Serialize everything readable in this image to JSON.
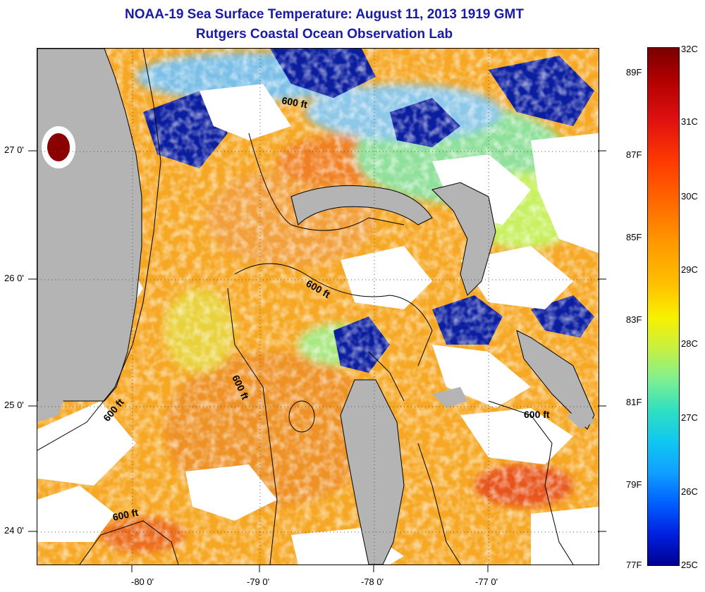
{
  "title": {
    "line1": "NOAA-19 Sea Surface Temperature:  August 11, 2013 1919 GMT",
    "line2": "Rutgers Coastal Ocean Observation Lab"
  },
  "map": {
    "latitude_labels": [
      "27 0'",
      "26 0'",
      "25 0'",
      "24 0'"
    ],
    "longitude_labels": [
      "-80 0'",
      "-79 0'",
      "-78 0'",
      "-77 0'"
    ],
    "contour_labels": [
      "600 ft",
      "600 ft",
      "600 ft",
      "600 ft",
      "600 ft",
      "600 ft"
    ],
    "colors": {
      "land": "#b4b4b4",
      "cloud": "#ffffff",
      "warm_water": "#f5a623",
      "hot_water": "#e8541a",
      "cool_water": "#2fb5e0",
      "cold_water": "#0a1aa0",
      "inland_hot": "#8b0000",
      "title": "#1a1aa8"
    }
  },
  "colorbar": {
    "celsius_labels": [
      "32C",
      "31C",
      "30C",
      "29C",
      "28C",
      "27C",
      "26C",
      "25C"
    ],
    "fahrenheit_labels": [
      "89F",
      "87F",
      "85F",
      "83F",
      "81F",
      "79F",
      "77F"
    ],
    "celsius_range": [
      25,
      32
    ],
    "fahrenheit_range": [
      77,
      89.6
    ]
  }
}
